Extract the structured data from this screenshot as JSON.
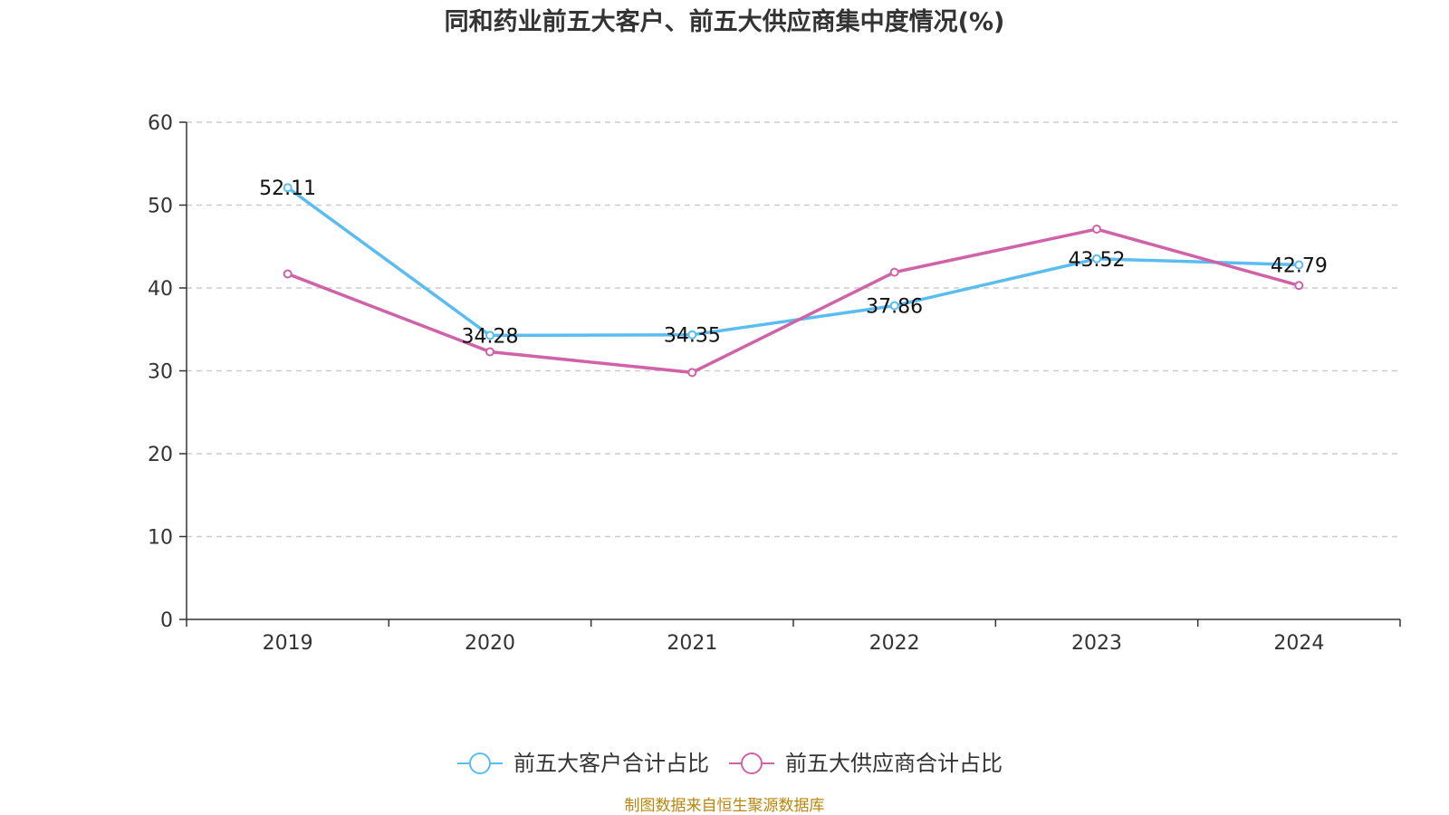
{
  "chart_data": {
    "type": "line",
    "title": "同和药业前五大客户、前五大供应商集中度情况(%)",
    "categories": [
      "2019",
      "2020",
      "2021",
      "2022",
      "2023",
      "2024"
    ],
    "ylim": [
      0,
      60
    ],
    "yticks": [
      0,
      10,
      20,
      30,
      40,
      50,
      60
    ],
    "grid": true,
    "legend_position": "bottom",
    "series": [
      {
        "name": "前五大客户合计占比",
        "color": "#5bbcf0",
        "values": [
          52.11,
          34.28,
          34.35,
          37.86,
          43.52,
          42.79
        ],
        "labels": [
          "52.11",
          "34.28",
          "34.35",
          "37.86",
          "43.52",
          "42.79"
        ]
      },
      {
        "name": "前五大供应商合计占比",
        "color": "#d062a8",
        "values": [
          41.7,
          32.3,
          29.8,
          41.9,
          47.1,
          40.3
        ]
      }
    ]
  },
  "source": "制图数据来自恒生聚源数据库"
}
